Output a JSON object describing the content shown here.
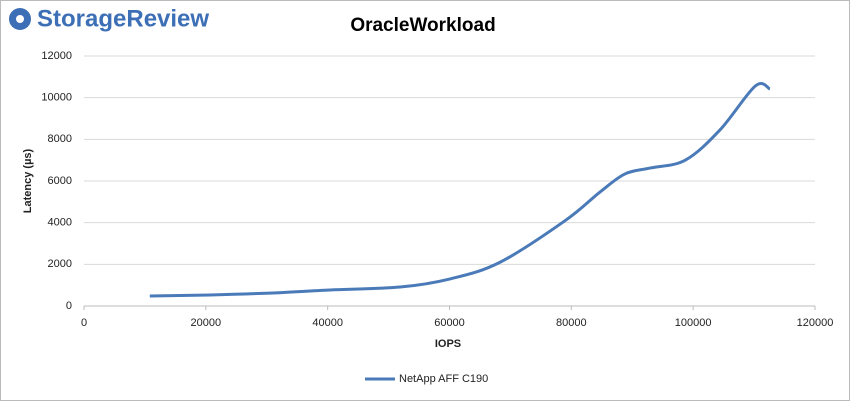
{
  "brand": "StorageReview",
  "chart_data": {
    "type": "line",
    "title": "OracleWorkload",
    "x_label": "IOPS",
    "y_label": "Latency (µs)",
    "x": [
      10800,
      20700,
      30500,
      40400,
      51900,
      60100,
      68300,
      79000,
      84700,
      88800,
      92900,
      98700,
      104400,
      110200,
      112600
    ],
    "series": [
      {
        "name": "NetApp AFF C190",
        "color": "#4a7ab8",
        "values": [
          480,
          530,
          620,
          770,
          910,
          1300,
          2100,
          4100,
          5470,
          6340,
          6620,
          7000,
          8450,
          10560,
          10420
        ]
      }
    ],
    "xlim": [
      0,
      120000
    ],
    "xticks": [
      0,
      20000,
      40000,
      60000,
      80000,
      100000,
      120000
    ],
    "ylim": [
      0,
      12000
    ],
    "yticks": [
      0,
      2000,
      4000,
      6000,
      8000,
      10000,
      12000
    ],
    "grid": true,
    "legend": "bottom"
  }
}
